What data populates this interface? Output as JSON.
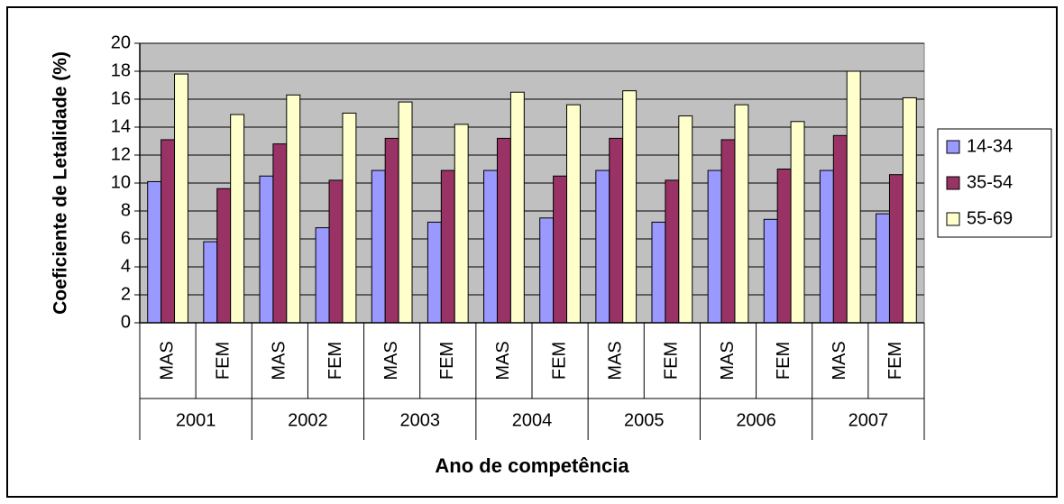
{
  "chart_data": {
    "type": "bar",
    "xlabel": "Ano de competência",
    "ylabel": "Coeficiente de Letalidade (%)",
    "categories": [
      "MAS",
      "FEM",
      "MAS",
      "FEM",
      "MAS",
      "FEM",
      "MAS",
      "FEM",
      "MAS",
      "FEM",
      "MAS",
      "FEM",
      "MAS",
      "FEM"
    ],
    "category_groups": [
      "2001",
      "2002",
      "2003",
      "2004",
      "2005",
      "2006",
      "2007"
    ],
    "series": [
      {
        "name": "14-34",
        "color": "#9999ff",
        "values": [
          10.1,
          5.8,
          10.5,
          6.8,
          10.9,
          7.2,
          10.9,
          7.5,
          10.9,
          7.2,
          10.9,
          7.4,
          10.9,
          7.8
        ]
      },
      {
        "name": "35-54",
        "color": "#993366",
        "values": [
          13.1,
          9.6,
          12.8,
          10.2,
          13.2,
          10.9,
          13.2,
          10.5,
          13.2,
          10.2,
          13.1,
          11.0,
          13.4,
          10.6
        ]
      },
      {
        "name": "55-69",
        "color": "#ffffcc",
        "values": [
          17.8,
          14.9,
          16.3,
          15.0,
          15.8,
          14.2,
          16.5,
          15.6,
          16.6,
          14.8,
          15.6,
          14.4,
          18.0,
          16.1
        ]
      }
    ],
    "ylim": [
      0,
      20
    ],
    "yticks": [
      0,
      2,
      4,
      6,
      8,
      10,
      12,
      14,
      16,
      18,
      20
    ],
    "grid": true,
    "legend": "right",
    "plot_background": "#c0c0c0"
  }
}
